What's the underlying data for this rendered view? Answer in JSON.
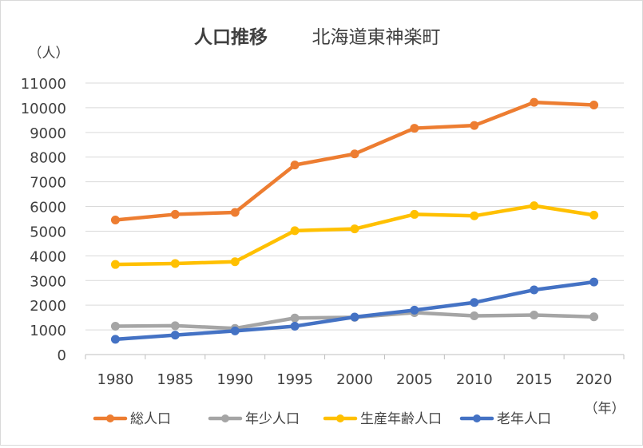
{
  "chart_data": {
    "type": "line",
    "title": "人口推移",
    "subtitle": "北海道東神楽町",
    "ylabel": "（人）",
    "xlabel": "（年）",
    "categories": [
      "1980",
      "1985",
      "1990",
      "1995",
      "2000",
      "2005",
      "2010",
      "2015",
      "2020"
    ],
    "ylim": [
      0,
      11000
    ],
    "yticks": [
      0,
      1000,
      2000,
      3000,
      4000,
      5000,
      6000,
      7000,
      8000,
      9000,
      10000,
      11000
    ],
    "grid": true,
    "legend_position": "bottom",
    "series": [
      {
        "name": "総人口",
        "color": "#ED7D31",
        "values": [
          5450,
          5680,
          5760,
          7680,
          8130,
          9170,
          9280,
          10220,
          10110
        ]
      },
      {
        "name": "年少人口",
        "color": "#A5A5A5",
        "values": [
          1150,
          1170,
          1060,
          1480,
          1510,
          1700,
          1570,
          1600,
          1530
        ]
      },
      {
        "name": "生産年齢人口",
        "color": "#FFC000",
        "values": [
          3650,
          3690,
          3760,
          5020,
          5090,
          5680,
          5620,
          6030,
          5650
        ]
      },
      {
        "name": "老年人口",
        "color": "#4472C4",
        "values": [
          620,
          790,
          960,
          1150,
          1520,
          1800,
          2110,
          2620,
          2940
        ]
      }
    ]
  }
}
